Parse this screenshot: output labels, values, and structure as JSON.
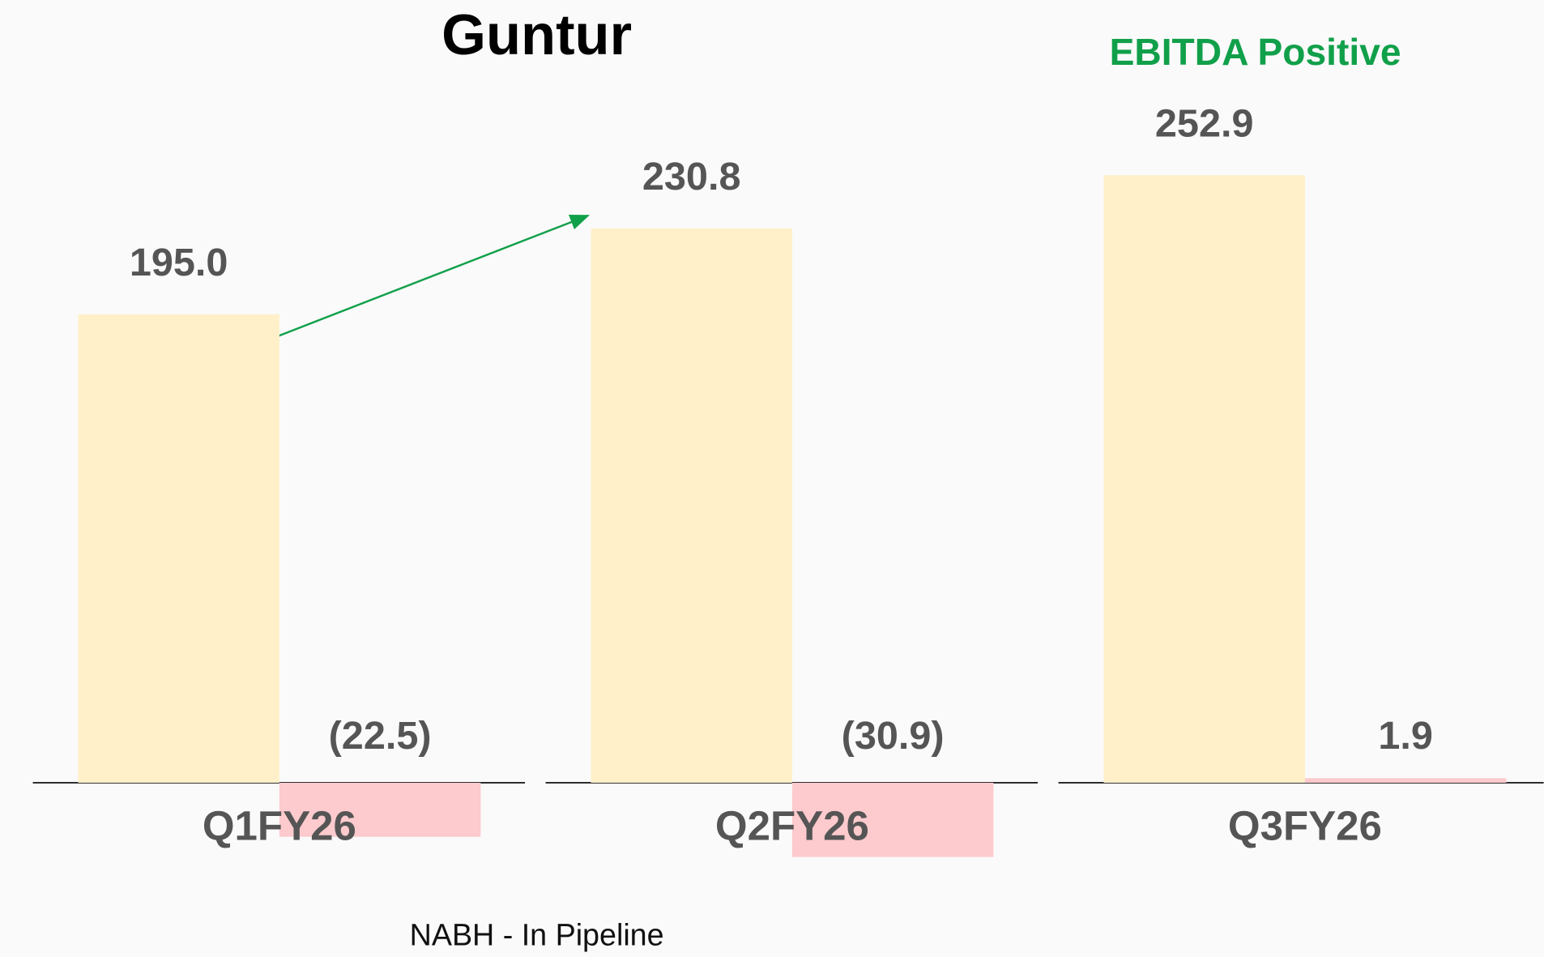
{
  "chart_data": {
    "type": "bar",
    "title": "Guntur",
    "annotation": "EBITDA Positive",
    "footnote": "NABH - In Pipeline",
    "categories": [
      "Q1FY26",
      "Q2FY26",
      "Q3FY26"
    ],
    "series": [
      {
        "color": "#fff0c9",
        "values": [
          195.0,
          230.8,
          252.9
        ],
        "value_labels": [
          "195.0",
          "230.8",
          "252.9"
        ]
      },
      {
        "color": "#fdcacd",
        "values": [
          -22.5,
          -30.9,
          1.9
        ],
        "value_labels": [
          "(22.5)",
          "(30.9)",
          "1.9"
        ]
      }
    ]
  }
}
